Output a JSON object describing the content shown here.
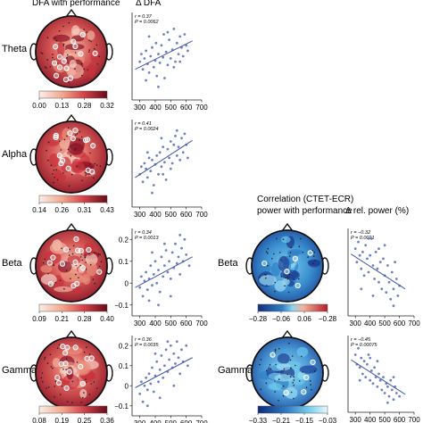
{
  "headers": {
    "dfa_col_title": "DFA  with performance",
    "delta_dfa": "Δ DFA",
    "corr_title_1": "Correlation (CTET-ECR)",
    "corr_title_2": "power with performance",
    "delta_rel_power": "Δ rel. power (%)"
  },
  "colors": {
    "heat_low": "#f6e2d8",
    "heat_mid": "#d5444c",
    "heat_high": "#7a0f1e",
    "cool_low": "#183a8c",
    "cool_mid": "#2f86c9",
    "cool_high": "#66ccf0",
    "point": "#6f82bd",
    "fit_line": "#3f5aa6"
  },
  "left_panels": [
    {
      "band": "Theta",
      "colorbar_ticks": [
        "0.00",
        "0.13",
        "0.28",
        "0.32"
      ],
      "stats": {
        "r": "r = 0.37",
        "p": "P = 0.0062"
      }
    },
    {
      "band": "Alpha",
      "colorbar_ticks": [
        "0.14",
        "0.26",
        "0.31",
        "0.43"
      ],
      "stats": {
        "r": "r = 0.41",
        "p": "P = 0.0024"
      }
    },
    {
      "band": "Beta",
      "colorbar_ticks": [
        "0.09",
        "0.21",
        "0.28",
        "0.40"
      ],
      "stats": {
        "r": "r = 0.34",
        "p": "P = 0.0013"
      }
    },
    {
      "band": "Gamma",
      "colorbar_ticks": [
        "0.08",
        "0.19",
        "0.25",
        "0.36"
      ],
      "stats": {
        "r": "r = 0.36",
        "p": "P = 0.0035"
      }
    }
  ],
  "right_panels": [
    {
      "band": "Beta",
      "colorbar_ticks": [
        "−0.28",
        "−0.06",
        "0.06",
        "−0.28"
      ],
      "stats": {
        "r": "r = −0.32",
        "p": "P = 0.0021"
      }
    },
    {
      "band": "Gamma",
      "colorbar_ticks": [
        "−0.33",
        "−0.21",
        "−0.15",
        "−0.03"
      ],
      "stats": {
        "r": "r = −0.45",
        "p": "P = 0.00075"
      }
    }
  ],
  "chart_data": [
    {
      "type": "scatter",
      "band": "Theta",
      "x_ticks": [
        "300",
        "400",
        "500",
        "600",
        "700"
      ],
      "xlim": [
        250,
        700
      ],
      "y_ticks": [],
      "ylim": [
        -0.3,
        0.5
      ],
      "points": [
        [
          300,
          0.05
        ],
        [
          310,
          0.12
        ],
        [
          320,
          -0.02
        ],
        [
          330,
          0.08
        ],
        [
          340,
          0.15
        ],
        [
          350,
          0.03
        ],
        [
          360,
          -0.05
        ],
        [
          370,
          0.1
        ],
        [
          380,
          0.18
        ],
        [
          390,
          0.0
        ],
        [
          400,
          0.06
        ],
        [
          405,
          0.22
        ],
        [
          410,
          -0.08
        ],
        [
          420,
          0.12
        ],
        [
          430,
          0.04
        ],
        [
          440,
          0.2
        ],
        [
          450,
          0.09
        ],
        [
          455,
          0.3
        ],
        [
          460,
          -0.1
        ],
        [
          470,
          0.14
        ],
        [
          480,
          0.02
        ],
        [
          490,
          0.25
        ],
        [
          500,
          0.08
        ],
        [
          510,
          0.16
        ],
        [
          520,
          0.35
        ],
        [
          530,
          0.05
        ],
        [
          540,
          0.22
        ],
        [
          550,
          0.12
        ],
        [
          560,
          0.28
        ],
        [
          570,
          0.18
        ],
        [
          580,
          0.1
        ],
        [
          590,
          0.3
        ],
        [
          600,
          0.2
        ],
        [
          360,
          0.28
        ],
        [
          420,
          -0.18
        ],
        [
          480,
          0.32
        ],
        [
          520,
          0.0
        ],
        [
          560,
          0.05
        ],
        [
          340,
          -0.12
        ],
        [
          610,
          0.15
        ]
      ],
      "fit": [
        [
          270,
          -0.02
        ],
        [
          640,
          0.24
        ]
      ]
    },
    {
      "type": "scatter",
      "band": "Alpha",
      "x_ticks": [
        "300",
        "400",
        "500",
        "600",
        "700"
      ],
      "xlim": [
        250,
        700
      ],
      "y_ticks": [],
      "ylim": [
        -0.35,
        0.45
      ],
      "points": [
        [
          300,
          -0.05
        ],
        [
          310,
          0.02
        ],
        [
          320,
          -0.12
        ],
        [
          330,
          0.05
        ],
        [
          340,
          0.0
        ],
        [
          350,
          -0.08
        ],
        [
          360,
          0.1
        ],
        [
          370,
          -0.02
        ],
        [
          380,
          0.08
        ],
        [
          390,
          -0.15
        ],
        [
          400,
          0.04
        ],
        [
          410,
          0.12
        ],
        [
          420,
          -0.05
        ],
        [
          430,
          0.15
        ],
        [
          440,
          0.02
        ],
        [
          450,
          0.2
        ],
        [
          460,
          0.06
        ],
        [
          470,
          -0.1
        ],
        [
          480,
          0.18
        ],
        [
          490,
          0.1
        ],
        [
          500,
          0.25
        ],
        [
          510,
          0.05
        ],
        [
          520,
          0.22
        ],
        [
          530,
          0.3
        ],
        [
          540,
          0.12
        ],
        [
          550,
          0.2
        ],
        [
          560,
          0.08
        ],
        [
          570,
          0.28
        ],
        [
          580,
          0.15
        ],
        [
          590,
          0.32
        ],
        [
          600,
          0.22
        ],
        [
          380,
          -0.22
        ],
        [
          450,
          -0.05
        ],
        [
          500,
          0.0
        ],
        [
          540,
          0.35
        ],
        [
          350,
          0.15
        ],
        [
          610,
          0.1
        ],
        [
          440,
          0.28
        ]
      ],
      "fit": [
        [
          270,
          -0.08
        ],
        [
          640,
          0.26
        ]
      ]
    },
    {
      "type": "scatter",
      "band": "Beta",
      "x_ticks": [
        "300",
        "400",
        "500",
        "600",
        "700"
      ],
      "xlim": [
        250,
        700
      ],
      "y_ticks": [
        "0.2",
        "0.1",
        "0",
        "−0.1"
      ],
      "ylim": [
        -0.15,
        0.25
      ],
      "points": [
        [
          300,
          -0.02
        ],
        [
          310,
          0.03
        ],
        [
          320,
          -0.06
        ],
        [
          330,
          0.01
        ],
        [
          340,
          0.05
        ],
        [
          350,
          -0.03
        ],
        [
          360,
          0.02
        ],
        [
          370,
          0.08
        ],
        [
          380,
          -0.01
        ],
        [
          390,
          0.04
        ],
        [
          400,
          0.1
        ],
        [
          410,
          0.0
        ],
        [
          420,
          0.06
        ],
        [
          430,
          -0.04
        ],
        [
          440,
          0.12
        ],
        [
          450,
          0.03
        ],
        [
          460,
          0.08
        ],
        [
          470,
          0.15
        ],
        [
          480,
          0.05
        ],
        [
          490,
          0.1
        ],
        [
          500,
          0.02
        ],
        [
          510,
          0.14
        ],
        [
          520,
          0.07
        ],
        [
          530,
          0.18
        ],
        [
          540,
          0.09
        ],
        [
          550,
          0.12
        ],
        [
          560,
          0.04
        ],
        [
          570,
          0.16
        ],
        [
          580,
          0.1
        ],
        [
          590,
          0.2
        ],
        [
          600,
          0.13
        ],
        [
          360,
          -0.08
        ],
        [
          420,
          -0.1
        ],
        [
          500,
          -0.06
        ],
        [
          460,
          0.18
        ],
        [
          560,
          0.22
        ],
        [
          380,
          0.14
        ],
        [
          620,
          0.08
        ]
      ],
      "fit": [
        [
          270,
          -0.02
        ],
        [
          640,
          0.12
        ]
      ]
    },
    {
      "type": "scatter",
      "band": "Gamma",
      "x_ticks": [
        "300",
        "400",
        "500",
        "600",
        "700"
      ],
      "xlim": [
        250,
        700
      ],
      "y_ticks": [
        "0.2",
        "0.1",
        "0",
        "−0.1"
      ],
      "ylim": [
        -0.15,
        0.25
      ],
      "points": [
        [
          300,
          -0.04
        ],
        [
          310,
          0.02
        ],
        [
          320,
          -0.08
        ],
        [
          330,
          0.0
        ],
        [
          340,
          0.04
        ],
        [
          350,
          -0.02
        ],
        [
          360,
          0.06
        ],
        [
          370,
          0.01
        ],
        [
          380,
          0.09
        ],
        [
          390,
          -0.03
        ],
        [
          400,
          0.05
        ],
        [
          410,
          0.12
        ],
        [
          420,
          0.02
        ],
        [
          430,
          0.08
        ],
        [
          440,
          0.15
        ],
        [
          450,
          0.04
        ],
        [
          460,
          0.1
        ],
        [
          470,
          0.18
        ],
        [
          480,
          0.07
        ],
        [
          490,
          0.13
        ],
        [
          500,
          0.2
        ],
        [
          510,
          0.09
        ],
        [
          520,
          0.16
        ],
        [
          530,
          0.11
        ],
        [
          540,
          0.22
        ],
        [
          550,
          0.14
        ],
        [
          560,
          0.06
        ],
        [
          570,
          0.18
        ],
        [
          580,
          0.12
        ],
        [
          600,
          0.2
        ],
        [
          350,
          -0.1
        ],
        [
          430,
          -0.06
        ],
        [
          520,
          0.0
        ],
        [
          480,
          0.22
        ],
        [
          400,
          0.16
        ],
        [
          610,
          0.1
        ]
      ],
      "fit": [
        [
          270,
          -0.01
        ],
        [
          640,
          0.14
        ]
      ]
    },
    {
      "type": "scatter",
      "band": "Beta",
      "x_ticks": [
        "300",
        "400",
        "500",
        "600",
        "700"
      ],
      "xlim": [
        250,
        700
      ],
      "y_ticks": [],
      "ylim": [
        -0.7,
        0.6
      ],
      "points": [
        [
          300,
          0.3
        ],
        [
          310,
          0.1
        ],
        [
          320,
          0.4
        ],
        [
          330,
          0.2
        ],
        [
          340,
          0.0
        ],
        [
          350,
          0.25
        ],
        [
          360,
          -0.1
        ],
        [
          370,
          0.35
        ],
        [
          380,
          0.15
        ],
        [
          390,
          -0.05
        ],
        [
          400,
          0.2
        ],
        [
          410,
          0.45
        ],
        [
          420,
          0.05
        ],
        [
          430,
          -0.15
        ],
        [
          440,
          0.25
        ],
        [
          450,
          0.0
        ],
        [
          460,
          -0.2
        ],
        [
          470,
          0.1
        ],
        [
          480,
          -0.3
        ],
        [
          490,
          0.15
        ],
        [
          500,
          -0.1
        ],
        [
          510,
          -0.35
        ],
        [
          520,
          0.05
        ],
        [
          530,
          -0.2
        ],
        [
          540,
          -0.45
        ],
        [
          550,
          -0.05
        ],
        [
          560,
          -0.3
        ],
        [
          570,
          0.1
        ],
        [
          580,
          -0.15
        ],
        [
          590,
          -0.4
        ],
        [
          600,
          -0.25
        ],
        [
          340,
          -0.3
        ],
        [
          420,
          -0.4
        ],
        [
          500,
          0.35
        ],
        [
          460,
          0.3
        ],
        [
          560,
          -0.55
        ],
        [
          390,
          0.45
        ]
      ],
      "fit": [
        [
          270,
          0.22
        ],
        [
          640,
          -0.3
        ]
      ]
    },
    {
      "type": "scatter",
      "band": "Gamma",
      "x_ticks": [
        "300",
        "400",
        "500",
        "600",
        "700"
      ],
      "xlim": [
        250,
        700
      ],
      "y_ticks": [],
      "ylim": [
        -0.6,
        0.6
      ],
      "points": [
        [
          300,
          0.3
        ],
        [
          310,
          0.15
        ],
        [
          320,
          0.4
        ],
        [
          330,
          0.1
        ],
        [
          340,
          0.25
        ],
        [
          350,
          0.0
        ],
        [
          360,
          0.2
        ],
        [
          370,
          -0.05
        ],
        [
          380,
          0.15
        ],
        [
          390,
          0.3
        ],
        [
          400,
          -0.1
        ],
        [
          410,
          0.05
        ],
        [
          420,
          -0.15
        ],
        [
          430,
          0.1
        ],
        [
          440,
          -0.05
        ],
        [
          450,
          -0.2
        ],
        [
          460,
          0.0
        ],
        [
          470,
          -0.1
        ],
        [
          480,
          -0.25
        ],
        [
          490,
          -0.05
        ],
        [
          500,
          -0.3
        ],
        [
          510,
          -0.15
        ],
        [
          520,
          -0.2
        ],
        [
          530,
          -0.35
        ],
        [
          540,
          -0.1
        ],
        [
          550,
          -0.25
        ],
        [
          560,
          -0.4
        ],
        [
          570,
          -0.2
        ],
        [
          580,
          -0.3
        ],
        [
          600,
          -0.35
        ],
        [
          330,
          -0.1
        ],
        [
          450,
          0.2
        ],
        [
          520,
          -0.45
        ],
        [
          400,
          0.25
        ],
        [
          560,
          -0.05
        ]
      ],
      "fit": [
        [
          270,
          0.22
        ],
        [
          640,
          -0.32
        ]
      ]
    }
  ]
}
